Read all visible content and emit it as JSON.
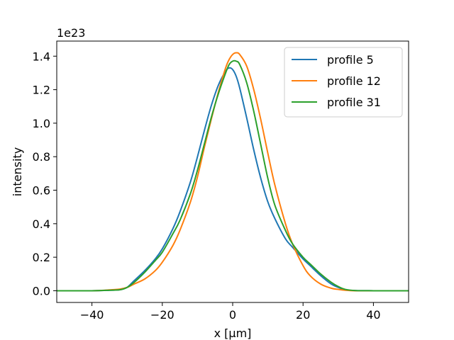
{
  "chart_data": {
    "type": "line",
    "xlabel": "x [μm]",
    "ylabel": "intensity",
    "offset_text": "1e23",
    "xlim": [
      -50,
      50
    ],
    "ylim": [
      -0.07,
      1.49
    ],
    "x_ticks": [
      -40,
      -20,
      0,
      20,
      40
    ],
    "x_tick_labels": [
      "−40",
      "−20",
      "0",
      "20",
      "40"
    ],
    "y_ticks": [
      0.0,
      0.2,
      0.4,
      0.6,
      0.8,
      1.0,
      1.2,
      1.4
    ],
    "y_tick_labels": [
      "0.0",
      "0.2",
      "0.4",
      "0.6",
      "0.8",
      "1.0",
      "1.2",
      "1.4"
    ],
    "grid": false,
    "legend_position": "top-right",
    "x": [
      -50,
      -40,
      -35,
      -32,
      -30,
      -28,
      -25,
      -22,
      -20,
      -17,
      -15,
      -12,
      -10,
      -8,
      -6,
      -4,
      -2,
      -1,
      0,
      1,
      2,
      4,
      6,
      8,
      10,
      12,
      15,
      17,
      20,
      22,
      25,
      28,
      30,
      32,
      35,
      40,
      50
    ],
    "series": [
      {
        "name": "profile 5",
        "color": "#1f77b4",
        "values": [
          0.0,
          0.0,
          0.003,
          0.006,
          0.02,
          0.06,
          0.12,
          0.19,
          0.25,
          0.37,
          0.47,
          0.65,
          0.8,
          0.96,
          1.11,
          1.23,
          1.31,
          1.33,
          1.32,
          1.28,
          1.21,
          1.03,
          0.84,
          0.67,
          0.53,
          0.43,
          0.31,
          0.26,
          0.19,
          0.15,
          0.09,
          0.04,
          0.02,
          0.005,
          0.001,
          0.0,
          0.0
        ]
      },
      {
        "name": "profile 12",
        "color": "#ff7f0e",
        "values": [
          0.0,
          0.0,
          0.005,
          0.01,
          0.02,
          0.04,
          0.07,
          0.12,
          0.17,
          0.27,
          0.36,
          0.53,
          0.68,
          0.86,
          1.03,
          1.19,
          1.33,
          1.38,
          1.41,
          1.42,
          1.41,
          1.34,
          1.2,
          1.02,
          0.82,
          0.63,
          0.4,
          0.28,
          0.15,
          0.09,
          0.04,
          0.015,
          0.008,
          0.003,
          0.0,
          0.0,
          0.0
        ]
      },
      {
        "name": "profile 31",
        "color": "#2ca02c",
        "values": [
          0.0,
          0.0,
          0.003,
          0.006,
          0.02,
          0.05,
          0.11,
          0.18,
          0.23,
          0.34,
          0.42,
          0.58,
          0.72,
          0.88,
          1.04,
          1.18,
          1.3,
          1.35,
          1.37,
          1.37,
          1.35,
          1.24,
          1.07,
          0.87,
          0.67,
          0.51,
          0.36,
          0.28,
          0.2,
          0.16,
          0.1,
          0.05,
          0.025,
          0.008,
          0.001,
          0.0,
          0.0
        ]
      }
    ]
  }
}
